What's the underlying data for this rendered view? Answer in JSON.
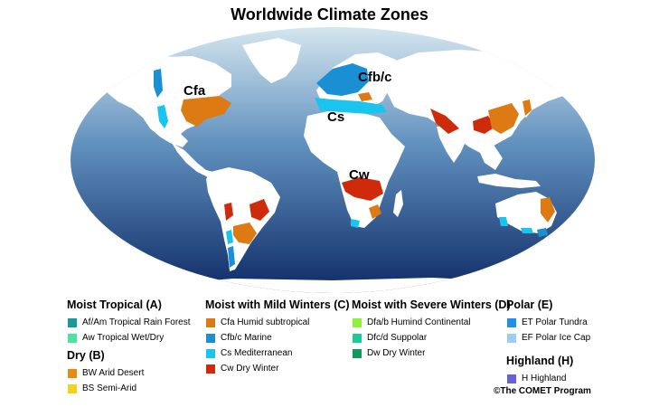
{
  "title": "Worldwide Climate Zones",
  "map_labels": {
    "cfa": "Cfa",
    "cfbc": "Cfb/c",
    "cs": "Cs",
    "cw": "Cw"
  },
  "colors": {
    "ocean_top": "#d4e6ef",
    "ocean_mid": "#5f8fbd",
    "ocean_bottom": "#0e2a66",
    "land": "#ffffff",
    "Af_Am": "#169b9b",
    "Aw": "#47e6a0",
    "BW": "#e88a12",
    "BS": "#f2d21a",
    "Cfa": "#dd7a13",
    "Cfb_c": "#1b8fd4",
    "Cs": "#19c4ef",
    "Cw": "#cf2a0c",
    "Dfa_b": "#8cf23a",
    "Dfc_d": "#1cc99a",
    "Dw": "#13965f",
    "ET": "#1e90f0",
    "EF": "#9ccdf7",
    "H": "#6a5fd6"
  },
  "legend": {
    "moist_tropical": {
      "title": "Moist Tropical (A)",
      "items": [
        {
          "code": "Af_Am",
          "label": "Af/Am Tropical Rain Forest"
        },
        {
          "code": "Aw",
          "label": "Aw Tropical Wet/Dry"
        }
      ]
    },
    "dry": {
      "title": "Dry (B)",
      "items": [
        {
          "code": "BW",
          "label": "BW Arid Desert"
        },
        {
          "code": "BS",
          "label": "BS Semi-Arid"
        }
      ]
    },
    "mild_winters": {
      "title": "Moist with Mild Winters (C)",
      "items": [
        {
          "code": "Cfa",
          "label": "Cfa Humid subtropical"
        },
        {
          "code": "Cfb_c",
          "label": "Cfb/c Marine"
        },
        {
          "code": "Cs",
          "label": "Cs Mediterranean"
        },
        {
          "code": "Cw",
          "label": "Cw Dry Winter"
        }
      ]
    },
    "severe_winters": {
      "title": "Moist with Severe Winters (D)",
      "items": [
        {
          "code": "Dfa_b",
          "label": "Dfa/b Humind Continental"
        },
        {
          "code": "Dfc_d",
          "label": "Dfc/d Suppolar"
        },
        {
          "code": "Dw",
          "label": "Dw Dry Winter"
        }
      ]
    },
    "polar": {
      "title": "Polar (E)",
      "items": [
        {
          "code": "ET",
          "label": "ET Polar Tundra"
        },
        {
          "code": "EF",
          "label": "EF Polar Ice Cap"
        }
      ]
    },
    "highland": {
      "title": "Highland (H)",
      "items": [
        {
          "code": "H",
          "label": "H Highland"
        }
      ]
    }
  },
  "credit": "©The COMET Program"
}
